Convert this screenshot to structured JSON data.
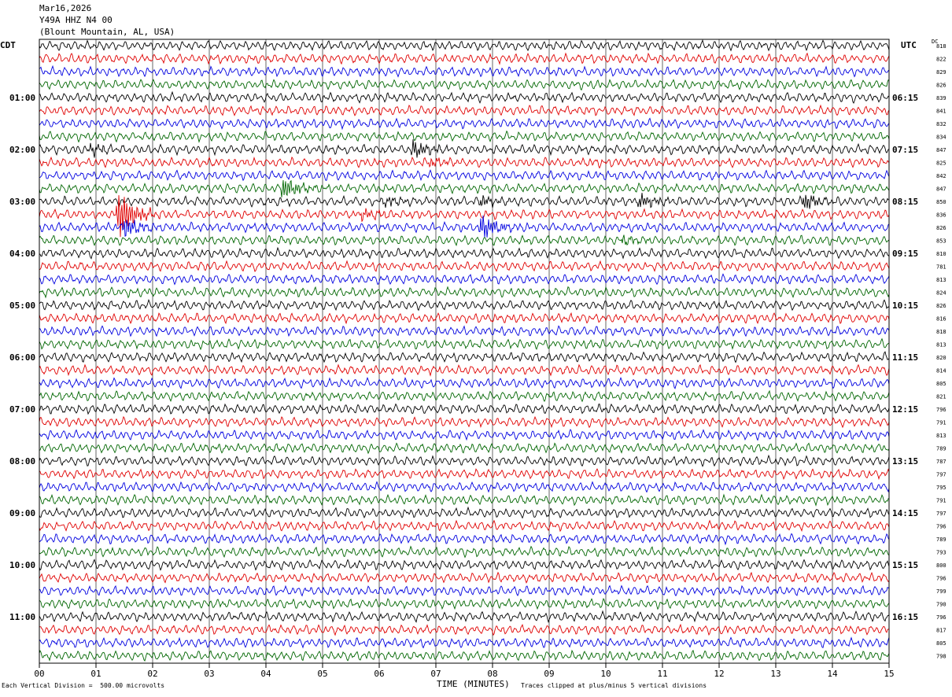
{
  "header": {
    "date": "Mar16,2026",
    "station": "Y49A HHZ N4 00",
    "location": "(Blount Mountain, AL, USA)"
  },
  "left_tz": "CDT",
  "right_tz": "UTC",
  "dc_label": "DC",
  "footer": {
    "scale_note": "Each Vertical Division =  500.00 microvolts",
    "xlabel": "TIME (MINUTES)",
    "clip_note": "Traces clipped at plus/minus 5 vertical divisions"
  },
  "chart_data": {
    "type": "line",
    "title": "Y49A HHZ N4 00",
    "xlabel": "TIME (MINUTES)",
    "xlim": [
      0,
      15
    ],
    "x_ticks": [
      "00",
      "01",
      "02",
      "03",
      "04",
      "05",
      "06",
      "07",
      "08",
      "09",
      "10",
      "11",
      "12",
      "13",
      "14",
      "15"
    ],
    "trace_colors": [
      "#000000",
      "#e00000",
      "#0000e0",
      "#006600"
    ],
    "left_hour_labels": [
      "01:00",
      "02:00",
      "03:00",
      "04:00",
      "05:00",
      "06:00",
      "07:00",
      "08:00",
      "09:00",
      "10:00",
      "11:00"
    ],
    "right_hour_labels": [
      "06:15",
      "07:15",
      "08:15",
      "09:15",
      "10:15",
      "11:15",
      "12:15",
      "13:15",
      "14:15",
      "15:15",
      "16:15"
    ],
    "dc_offsets": [
      818,
      822,
      829,
      826,
      839,
      841,
      832,
      834,
      847,
      825,
      842,
      847,
      850,
      836,
      826,
      853,
      810,
      781,
      813,
      824,
      826,
      816,
      818,
      813,
      820,
      814,
      805,
      821,
      796,
      791,
      813,
      789,
      787,
      797,
      795,
      791,
      797,
      796,
      789,
      793,
      800,
      796,
      799,
      790,
      796,
      817,
      805,
      798
    ],
    "events": [
      {
        "row": 8,
        "minute": 0.9,
        "amp": 0.6
      },
      {
        "row": 8,
        "minute": 6.6,
        "amp": 1.0
      },
      {
        "row": 9,
        "minute": 6.9,
        "amp": 0.4
      },
      {
        "row": 11,
        "minute": 4.3,
        "amp": 1.3
      },
      {
        "row": 12,
        "minute": 6.1,
        "amp": 0.5
      },
      {
        "row": 12,
        "minute": 7.8,
        "amp": 0.6
      },
      {
        "row": 12,
        "minute": 10.6,
        "amp": 0.8
      },
      {
        "row": 12,
        "minute": 13.5,
        "amp": 1.0
      },
      {
        "row": 13,
        "minute": 1.4,
        "amp": 2.8
      },
      {
        "row": 13,
        "minute": 5.7,
        "amp": 0.6
      },
      {
        "row": 14,
        "minute": 1.5,
        "amp": 1.2
      },
      {
        "row": 14,
        "minute": 7.8,
        "amp": 1.4
      },
      {
        "row": 15,
        "minute": 10.3,
        "amp": 0.5
      }
    ]
  }
}
